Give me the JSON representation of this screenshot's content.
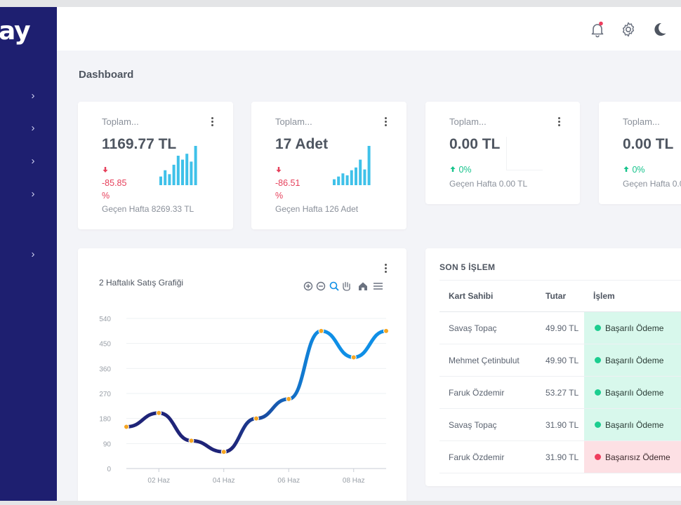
{
  "brand": {
    "logo_text": "ay"
  },
  "page": {
    "title": "Dashboard"
  },
  "stats": [
    {
      "label": "Toplam...",
      "value": "1169.77 TL",
      "trend": "down",
      "delta_line1": "-85.85",
      "delta_line2": "%",
      "previous": "Geçen Hafta 8269.33 TL",
      "bars": [
        0.22,
        0.38,
        0.28,
        0.52,
        0.75,
        0.65,
        0.8,
        0.6,
        1.0
      ]
    },
    {
      "label": "Toplam...",
      "value": "17 Adet",
      "trend": "down",
      "delta_line1": "-86.51",
      "delta_line2": "%",
      "previous": "Geçen Hafta 126 Adet",
      "bars": [
        0.15,
        0.22,
        0.3,
        0.25,
        0.38,
        0.45,
        0.65,
        0.4,
        1.0
      ]
    },
    {
      "label": "Toplam...",
      "value": "0.00 TL",
      "trend": "up",
      "delta_line1": "0%",
      "previous": "Geçen Hafta 0.00 TL",
      "bars": []
    },
    {
      "label": "Toplam...",
      "value": "0.00 TL",
      "trend": "up",
      "delta_line1": "0%",
      "previous": "Geçen Hafta 0.0",
      "bars": []
    }
  ],
  "sales_chart": {
    "title": "2 Haftalık Satış Grafiği",
    "toolbar": [
      "zoom-in-icon",
      "zoom-out-icon",
      "zoom-select-icon",
      "pan-hand-icon",
      "home-icon",
      "menu-icon"
    ]
  },
  "chart_data": {
    "type": "line",
    "x": [
      "01 Haz",
      "02 Haz",
      "03 Haz",
      "04 Haz",
      "05 Haz",
      "06 Haz",
      "07 Haz",
      "08 Haz",
      "09 Haz"
    ],
    "y": [
      150,
      200,
      100,
      60,
      180,
      250,
      495,
      400,
      495
    ],
    "x_tick_labels": [
      "02 Haz",
      "04 Haz",
      "06 Haz",
      "08 Haz"
    ],
    "y_tick_labels": [
      "540",
      "450",
      "360",
      "270",
      "180",
      "90",
      "0"
    ],
    "ylim": [
      0,
      540
    ],
    "grid": true,
    "line_colors": [
      "#1f2478",
      "#0f8fe6"
    ],
    "marker_color": "#f5a623"
  },
  "transactions": {
    "title": "SON 5 İŞLEM",
    "headers": [
      "Kart Sahibi",
      "Tutar",
      "İşlem"
    ],
    "rows": [
      {
        "name": "Savaş Topaç",
        "amount": "49.90 TL",
        "status": "Başarılı Ödeme",
        "ok": true
      },
      {
        "name": "Mehmet Çetinbulut",
        "amount": "49.90 TL",
        "status": "Başarılı Ödeme",
        "ok": true
      },
      {
        "name": "Faruk Özdemir",
        "amount": "53.27 TL",
        "status": "Başarılı Ödeme",
        "ok": true
      },
      {
        "name": "Savaş Topaç",
        "amount": "31.90 TL",
        "status": "Başarılı Ödeme",
        "ok": true
      },
      {
        "name": "Faruk Özdemir",
        "amount": "31.90 TL",
        "status": "Başarısız Ödeme",
        "ok": false
      }
    ]
  },
  "colors": {
    "sidebar": "#1e1f70",
    "bars": "#3fc1e9",
    "success": "#1ccd8f",
    "danger": "#ef3d5d",
    "notification": "#ef3d5d"
  }
}
